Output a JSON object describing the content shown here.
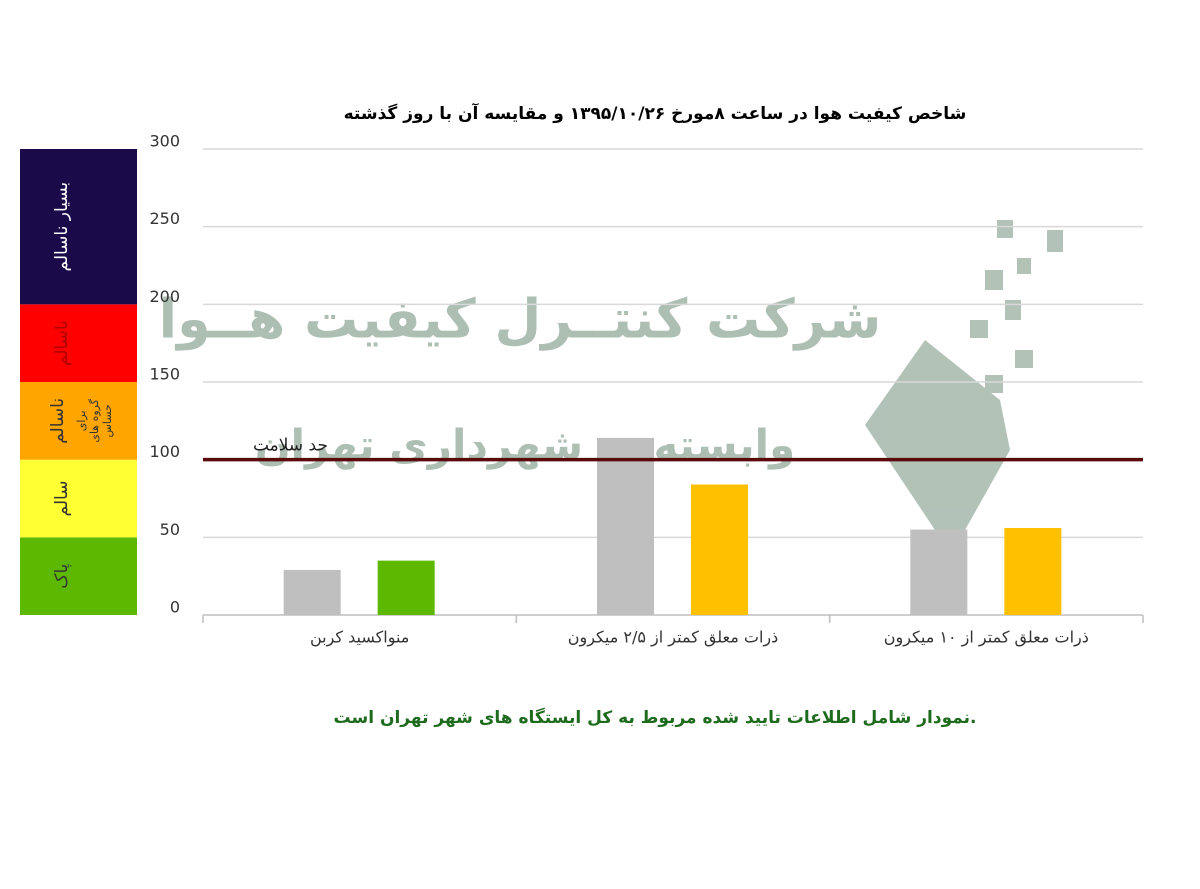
{
  "chart_data": {
    "type": "bar",
    "title": "شاخص کیفیت هوا در ساعت ۸مورخ ۱۳۹۵/۱۰/۲۶ و مقایسه آن با روز گذشته",
    "categories": [
      "منواکسید کربن",
      "ذرات معلق کمتر از ۲/۵ میکرون",
      "ذرات معلق کمتر از ۱۰ میکرون"
    ],
    "series": [
      {
        "color": "#bfbfbf",
        "values": [
          29,
          114,
          55
        ]
      },
      {
        "colors": [
          "#5cb800",
          "#ffc000",
          "#ffc000"
        ],
        "values": [
          35,
          84,
          56
        ]
      }
    ],
    "ylim": [
      0,
      300
    ],
    "yticks": [
      0,
      50,
      100,
      150,
      200,
      250,
      300
    ],
    "grid": true,
    "threshold": {
      "value": 100,
      "label": "حد سلامت",
      "color": "#5a0a0a"
    },
    "aqi_bands": [
      {
        "from": 0,
        "to": 50,
        "label": "پاک",
        "color": "#5cb800"
      },
      {
        "from": 50,
        "to": 100,
        "label": "سالم",
        "color": "#ffff33"
      },
      {
        "from": 100,
        "to": 150,
        "label": "ناسالم",
        "sublabel": [
          "برای",
          "گروه های",
          "حساس"
        ],
        "color": "#ffa500"
      },
      {
        "from": 150,
        "to": 200,
        "label": "ناسالم",
        "color": "#ff0000"
      },
      {
        "from": 200,
        "to": 300,
        "label": "بسیار ناسالم",
        "color": "#1a0a4a"
      }
    ],
    "watermark": [
      "شرکت کنتــرل کیفیت هــوا",
      "وابسته به شهرداری تهران"
    ],
    "note": "نمودار شامل اطلاعات تایید شده مربوط به کل ایستگاه های شهر تهران است."
  }
}
